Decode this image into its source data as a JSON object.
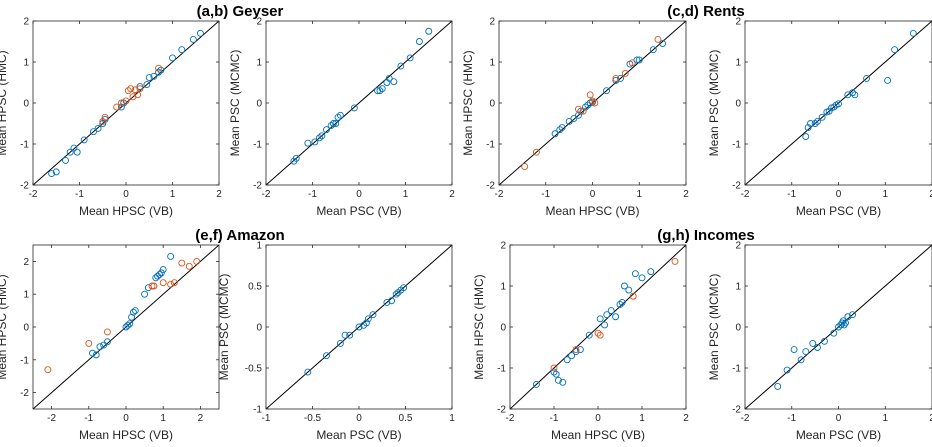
{
  "colors": {
    "blue": "#0072BD",
    "orange": "#D95319",
    "axis": "#262626",
    "diagonal": "#000000"
  },
  "titles": [
    "(a,b) Geyser",
    "(c,d) Rents",
    "(e,f) Amazon",
    "(g,h) Incomes"
  ],
  "chart_data": [
    {
      "type": "scatter",
      "id": "a",
      "title_index": 0,
      "xlabel": "Mean HPSC (VB)",
      "ylabel": "Mean HPSC (HMC)",
      "xlim": [
        -2,
        2
      ],
      "ylim": [
        -2,
        2
      ],
      "xticks": [
        -2,
        -1,
        0,
        1,
        2
      ],
      "yticks": [
        -2,
        -1,
        0,
        1,
        2
      ],
      "diagonal": true,
      "series": [
        {
          "name": "blue",
          "color": "#0072BD",
          "points": [
            [
              -1.6,
              -1.72
            ],
            [
              -1.5,
              -1.68
            ],
            [
              -1.3,
              -1.4
            ],
            [
              -1.2,
              -1.2
            ],
            [
              -1.12,
              -1.1
            ],
            [
              -1.05,
              -1.2
            ],
            [
              -0.9,
              -0.9
            ],
            [
              -0.7,
              -0.7
            ],
            [
              -0.6,
              -0.62
            ],
            [
              -0.5,
              -0.5
            ],
            [
              -0.45,
              -0.4
            ],
            [
              -0.1,
              -0.1
            ],
            [
              -0.05,
              0.0
            ],
            [
              0.3,
              0.4
            ],
            [
              0.45,
              0.45
            ],
            [
              0.5,
              0.62
            ],
            [
              0.6,
              0.65
            ],
            [
              0.7,
              0.75
            ],
            [
              0.75,
              0.8
            ],
            [
              1.0,
              1.1
            ],
            [
              1.2,
              1.3
            ],
            [
              1.45,
              1.55
            ],
            [
              1.6,
              1.7
            ]
          ]
        },
        {
          "name": "orange",
          "color": "#D95319",
          "points": [
            [
              -0.5,
              -0.45
            ],
            [
              -0.45,
              -0.35
            ],
            [
              -0.2,
              -0.1
            ],
            [
              -0.1,
              0.0
            ],
            [
              0.0,
              0.05
            ],
            [
              0.05,
              0.3
            ],
            [
              0.1,
              0.35
            ],
            [
              0.15,
              0.15
            ],
            [
              0.2,
              0.32
            ],
            [
              0.25,
              0.2
            ],
            [
              0.3,
              0.35
            ],
            [
              0.7,
              0.85
            ]
          ]
        }
      ]
    },
    {
      "type": "scatter",
      "id": "b",
      "xlabel": "Mean PSC (VB)",
      "ylabel": "Mean PSC (MCMC)",
      "xlim": [
        -2,
        2
      ],
      "ylim": [
        -2,
        2
      ],
      "xticks": [
        -2,
        -1,
        0,
        1,
        2
      ],
      "yticks": [
        -2,
        -1,
        0,
        1,
        2
      ],
      "diagonal": true,
      "series": [
        {
          "name": "blue",
          "color": "#0072BD",
          "points": [
            [
              -1.4,
              -1.42
            ],
            [
              -1.35,
              -1.35
            ],
            [
              -1.1,
              -0.98
            ],
            [
              -0.95,
              -0.95
            ],
            [
              -0.85,
              -0.85
            ],
            [
              -0.8,
              -0.8
            ],
            [
              -0.7,
              -0.65
            ],
            [
              -0.6,
              -0.55
            ],
            [
              -0.55,
              -0.5
            ],
            [
              -0.5,
              -0.5
            ],
            [
              -0.45,
              -0.35
            ],
            [
              -0.4,
              -0.3
            ],
            [
              -0.1,
              -0.12
            ],
            [
              0.4,
              0.3
            ],
            [
              0.45,
              0.3
            ],
            [
              0.5,
              0.35
            ],
            [
              0.6,
              0.5
            ],
            [
              0.65,
              0.6
            ],
            [
              0.75,
              0.52
            ],
            [
              0.9,
              0.9
            ],
            [
              1.1,
              1.1
            ],
            [
              1.3,
              1.5
            ],
            [
              1.5,
              1.75
            ]
          ]
        }
      ]
    },
    {
      "type": "scatter",
      "id": "c",
      "title_index": 1,
      "xlabel": "Mean HPSC (VB)",
      "ylabel": "Mean HPSC (HMC)",
      "xlim": [
        -2,
        2
      ],
      "ylim": [
        -2,
        2
      ],
      "xticks": [
        -2,
        -1,
        0,
        1,
        2
      ],
      "yticks": [
        -2,
        -1,
        0,
        1,
        2
      ],
      "diagonal": true,
      "series": [
        {
          "name": "blue",
          "color": "#0072BD",
          "points": [
            [
              -0.8,
              -0.75
            ],
            [
              -0.7,
              -0.65
            ],
            [
              -0.65,
              -0.6
            ],
            [
              -0.5,
              -0.45
            ],
            [
              -0.4,
              -0.38
            ],
            [
              -0.3,
              -0.3
            ],
            [
              -0.25,
              -0.2
            ],
            [
              -0.15,
              -0.1
            ],
            [
              -0.1,
              -0.05
            ],
            [
              -0.05,
              0.0
            ],
            [
              0.0,
              0.02
            ],
            [
              0.3,
              0.3
            ],
            [
              0.5,
              0.55
            ],
            [
              0.6,
              0.6
            ],
            [
              0.8,
              0.95
            ],
            [
              0.95,
              1.05
            ],
            [
              1.0,
              1.05
            ],
            [
              1.3,
              1.3
            ],
            [
              1.5,
              1.45
            ]
          ]
        },
        {
          "name": "orange",
          "color": "#D95319",
          "points": [
            [
              -1.45,
              -1.55
            ],
            [
              -1.2,
              -1.2
            ],
            [
              -0.3,
              -0.15
            ],
            [
              -0.2,
              -0.2
            ],
            [
              -0.05,
              0.2
            ],
            [
              0.0,
              0.05
            ],
            [
              0.05,
              0.0
            ],
            [
              0.5,
              0.6
            ],
            [
              0.7,
              0.72
            ],
            [
              0.85,
              0.98
            ],
            [
              1.4,
              1.55
            ]
          ]
        }
      ]
    },
    {
      "type": "scatter",
      "id": "d",
      "xlabel": "Mean PSC (VB)",
      "ylabel": "Mean PSC (MCMC)",
      "xlim": [
        -2,
        2
      ],
      "ylim": [
        -2,
        2
      ],
      "xticks": [
        -2,
        -1,
        0,
        1,
        2
      ],
      "yticks": [
        -2,
        -1,
        0,
        1,
        2
      ],
      "diagonal": true,
      "series": [
        {
          "name": "blue",
          "color": "#0072BD",
          "points": [
            [
              -0.7,
              -0.82
            ],
            [
              -0.65,
              -0.6
            ],
            [
              -0.6,
              -0.5
            ],
            [
              -0.5,
              -0.5
            ],
            [
              -0.45,
              -0.45
            ],
            [
              -0.35,
              -0.35
            ],
            [
              -0.25,
              -0.22
            ],
            [
              -0.2,
              -0.2
            ],
            [
              -0.15,
              -0.12
            ],
            [
              -0.1,
              -0.1
            ],
            [
              -0.05,
              -0.05
            ],
            [
              0.0,
              -0.02
            ],
            [
              0.2,
              0.2
            ],
            [
              0.3,
              0.25
            ],
            [
              0.35,
              0.2
            ],
            [
              0.6,
              0.6
            ],
            [
              1.05,
              0.55
            ],
            [
              1.2,
              1.3
            ],
            [
              1.6,
              1.7
            ]
          ]
        }
      ]
    },
    {
      "type": "scatter",
      "id": "e",
      "title_index": 2,
      "xlabel": "Mean HPSC (VB)",
      "ylabel": "Mean HPSC (HMC)",
      "xlim": [
        -2.5,
        2.5
      ],
      "ylim": [
        -2.5,
        2.5
      ],
      "xticks": [
        -2,
        -1,
        0,
        1,
        2
      ],
      "yticks": [
        -2,
        -1,
        0,
        1,
        2
      ],
      "diagonal": true,
      "series": [
        {
          "name": "blue",
          "color": "#0072BD",
          "points": [
            [
              -0.9,
              -0.8
            ],
            [
              -0.8,
              -0.85
            ],
            [
              -0.7,
              -0.6
            ],
            [
              -0.6,
              -0.55
            ],
            [
              -0.5,
              -0.45
            ],
            [
              0.0,
              0.0
            ],
            [
              0.05,
              0.05
            ],
            [
              0.1,
              0.1
            ],
            [
              0.15,
              0.3
            ],
            [
              0.2,
              0.45
            ],
            [
              0.25,
              0.5
            ],
            [
              0.5,
              1.0
            ],
            [
              0.6,
              1.2
            ],
            [
              0.8,
              1.5
            ],
            [
              0.85,
              1.55
            ],
            [
              0.9,
              1.6
            ],
            [
              0.95,
              1.65
            ],
            [
              1.0,
              1.75
            ],
            [
              1.2,
              2.15
            ]
          ]
        },
        {
          "name": "orange",
          "color": "#D95319",
          "points": [
            [
              -2.1,
              -1.3
            ],
            [
              -1.0,
              -0.5
            ],
            [
              -0.5,
              -0.15
            ],
            [
              0.7,
              1.25
            ],
            [
              0.75,
              1.25
            ],
            [
              1.0,
              1.35
            ],
            [
              1.2,
              1.3
            ],
            [
              1.3,
              1.35
            ],
            [
              1.5,
              1.95
            ],
            [
              1.7,
              1.85
            ],
            [
              1.9,
              2.0
            ]
          ]
        }
      ]
    },
    {
      "type": "scatter",
      "id": "f",
      "xlabel": "Mean PSC (VB)",
      "ylabel": "Mean PSC (MCMC)",
      "xlim": [
        -1,
        1
      ],
      "ylim": [
        -1,
        1
      ],
      "xticks": [
        -1,
        -0.5,
        0,
        0.5,
        1
      ],
      "yticks": [
        -1,
        -0.5,
        0,
        0.5,
        1
      ],
      "diagonal": true,
      "series": [
        {
          "name": "blue",
          "color": "#0072BD",
          "points": [
            [
              -0.55,
              -0.55
            ],
            [
              -0.35,
              -0.35
            ],
            [
              -0.2,
              -0.2
            ],
            [
              -0.15,
              -0.1
            ],
            [
              -0.1,
              -0.1
            ],
            [
              0.0,
              0.0
            ],
            [
              0.05,
              0.02
            ],
            [
              0.08,
              0.05
            ],
            [
              0.1,
              0.1
            ],
            [
              0.15,
              0.15
            ],
            [
              0.3,
              0.3
            ],
            [
              0.35,
              0.32
            ],
            [
              0.4,
              0.4
            ],
            [
              0.42,
              0.42
            ],
            [
              0.45,
              0.45
            ],
            [
              0.48,
              0.48
            ]
          ]
        }
      ]
    },
    {
      "type": "scatter",
      "id": "g",
      "title_index": 3,
      "xlabel": "Mean HPSC (VB)",
      "ylabel": "Mean HPSC (HMC)",
      "xlim": [
        -2,
        2
      ],
      "ylim": [
        -2,
        2
      ],
      "xticks": [
        -2,
        -1,
        0,
        1,
        2
      ],
      "yticks": [
        -2,
        -1,
        0,
        1,
        2
      ],
      "diagonal": true,
      "series": [
        {
          "name": "blue",
          "color": "#0072BD",
          "points": [
            [
              -1.4,
              -1.4
            ],
            [
              -1.0,
              -1.1
            ],
            [
              -0.95,
              -1.15
            ],
            [
              -0.9,
              -1.3
            ],
            [
              -0.8,
              -1.35
            ],
            [
              -0.7,
              -0.8
            ],
            [
              -0.6,
              -0.7
            ],
            [
              -0.5,
              -0.6
            ],
            [
              -0.4,
              -0.55
            ],
            [
              -0.2,
              -0.2
            ],
            [
              0.05,
              0.2
            ],
            [
              0.15,
              0.05
            ],
            [
              0.2,
              0.3
            ],
            [
              0.3,
              0.4
            ],
            [
              0.4,
              0.25
            ],
            [
              0.5,
              0.55
            ],
            [
              0.55,
              0.6
            ],
            [
              0.6,
              1.0
            ],
            [
              0.7,
              0.9
            ],
            [
              0.85,
              1.3
            ],
            [
              1.0,
              1.2
            ],
            [
              1.2,
              1.35
            ]
          ]
        },
        {
          "name": "orange",
          "color": "#D95319",
          "points": [
            [
              -1.0,
              -1.0
            ],
            [
              -0.5,
              -0.55
            ],
            [
              0.0,
              -0.15
            ],
            [
              0.05,
              -0.2
            ],
            [
              0.8,
              0.75
            ],
            [
              1.75,
              1.6
            ]
          ]
        }
      ]
    },
    {
      "type": "scatter",
      "id": "h",
      "xlabel": "Mean PSC (VB)",
      "ylabel": "Mean PSC (MCMC)",
      "xlim": [
        -2,
        2
      ],
      "ylim": [
        -2,
        2
      ],
      "xticks": [
        -2,
        -1,
        0,
        1,
        2
      ],
      "yticks": [
        -2,
        -1,
        0,
        1,
        2
      ],
      "diagonal": true,
      "series": [
        {
          "name": "blue",
          "color": "#0072BD",
          "points": [
            [
              -1.3,
              -1.45
            ],
            [
              -1.1,
              -1.05
            ],
            [
              -0.95,
              -0.55
            ],
            [
              -0.8,
              -0.8
            ],
            [
              -0.7,
              -0.6
            ],
            [
              -0.55,
              -0.4
            ],
            [
              -0.45,
              -0.5
            ],
            [
              -0.3,
              -0.35
            ],
            [
              -0.1,
              -0.15
            ],
            [
              0.0,
              0.0
            ],
            [
              0.05,
              0.05
            ],
            [
              0.08,
              0.1
            ],
            [
              0.1,
              0.15
            ],
            [
              0.12,
              0.05
            ],
            [
              0.15,
              0.1
            ],
            [
              0.2,
              0.25
            ],
            [
              0.3,
              0.3
            ]
          ]
        }
      ]
    }
  ]
}
